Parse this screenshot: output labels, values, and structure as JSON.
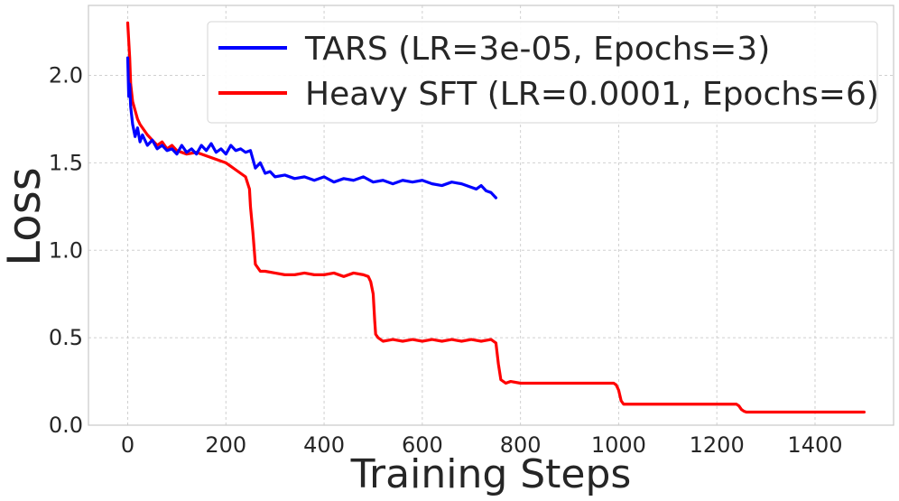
{
  "chart_data": {
    "type": "line",
    "title": "",
    "xlabel": "Training Steps",
    "ylabel": "Loss",
    "xlim": [
      -80,
      1560
    ],
    "ylim": [
      0.0,
      2.4
    ],
    "x_ticks": [
      0,
      200,
      400,
      600,
      800,
      1000,
      1200,
      1400
    ],
    "y_ticks": [
      0.0,
      0.5,
      1.0,
      1.5,
      2.0
    ],
    "x_tick_labels": [
      "0",
      "200",
      "400",
      "600",
      "800",
      "1000",
      "1200",
      "1400"
    ],
    "y_tick_labels": [
      "0.0",
      "0.5",
      "1.0",
      "1.5",
      "2.0"
    ],
    "grid": true,
    "legend_position": "top-right",
    "series": [
      {
        "name": "TARS (LR=3e-05, Epochs=3)",
        "color": "#0000ff",
        "x": [
          0,
          2,
          4,
          6,
          10,
          15,
          20,
          25,
          30,
          40,
          50,
          60,
          70,
          80,
          90,
          100,
          110,
          120,
          130,
          140,
          150,
          160,
          170,
          180,
          190,
          200,
          210,
          220,
          230,
          240,
          250,
          260,
          270,
          280,
          290,
          300,
          320,
          340,
          360,
          380,
          400,
          420,
          440,
          460,
          480,
          500,
          520,
          540,
          560,
          580,
          600,
          620,
          640,
          660,
          680,
          700,
          710,
          720,
          730,
          740,
          750
        ],
        "y": [
          2.1,
          1.88,
          1.95,
          1.82,
          1.72,
          1.65,
          1.7,
          1.62,
          1.66,
          1.6,
          1.63,
          1.58,
          1.6,
          1.57,
          1.58,
          1.55,
          1.6,
          1.56,
          1.58,
          1.55,
          1.6,
          1.57,
          1.61,
          1.56,
          1.58,
          1.55,
          1.6,
          1.57,
          1.58,
          1.56,
          1.57,
          1.47,
          1.5,
          1.44,
          1.45,
          1.42,
          1.43,
          1.41,
          1.42,
          1.4,
          1.42,
          1.39,
          1.41,
          1.4,
          1.42,
          1.39,
          1.4,
          1.38,
          1.4,
          1.39,
          1.4,
          1.38,
          1.37,
          1.39,
          1.38,
          1.36,
          1.35,
          1.37,
          1.34,
          1.33,
          1.3
        ]
      },
      {
        "name": "Heavy SFT (LR=0.0001, Epochs=6)",
        "color": "#ff0000",
        "x": [
          0,
          2,
          4,
          6,
          10,
          15,
          20,
          25,
          30,
          40,
          50,
          60,
          70,
          80,
          90,
          100,
          120,
          140,
          160,
          180,
          200,
          220,
          240,
          248,
          250,
          255,
          260,
          270,
          280,
          300,
          320,
          340,
          360,
          380,
          400,
          420,
          440,
          460,
          480,
          490,
          495,
          500,
          503,
          505,
          510,
          520,
          540,
          560,
          580,
          600,
          620,
          640,
          660,
          680,
          700,
          720,
          740,
          745,
          750,
          755,
          760,
          770,
          780,
          800,
          850,
          900,
          950,
          990,
          995,
          1000,
          1005,
          1010,
          1050,
          1100,
          1150,
          1200,
          1240,
          1245,
          1250,
          1255,
          1260,
          1300,
          1350,
          1400,
          1450,
          1500
        ],
        "y": [
          2.3,
          2.2,
          2.1,
          1.95,
          1.85,
          1.8,
          1.75,
          1.72,
          1.7,
          1.66,
          1.63,
          1.6,
          1.62,
          1.58,
          1.6,
          1.57,
          1.55,
          1.56,
          1.54,
          1.52,
          1.5,
          1.46,
          1.42,
          1.35,
          1.25,
          1.1,
          0.92,
          0.88,
          0.88,
          0.87,
          0.86,
          0.86,
          0.87,
          0.86,
          0.86,
          0.87,
          0.85,
          0.87,
          0.86,
          0.85,
          0.82,
          0.75,
          0.6,
          0.52,
          0.5,
          0.48,
          0.49,
          0.48,
          0.49,
          0.48,
          0.49,
          0.48,
          0.49,
          0.48,
          0.49,
          0.48,
          0.49,
          0.48,
          0.47,
          0.35,
          0.26,
          0.24,
          0.25,
          0.24,
          0.24,
          0.24,
          0.24,
          0.24,
          0.23,
          0.2,
          0.14,
          0.12,
          0.12,
          0.12,
          0.12,
          0.12,
          0.12,
          0.11,
          0.09,
          0.08,
          0.075,
          0.075,
          0.075,
          0.075,
          0.075,
          0.075
        ]
      }
    ]
  }
}
